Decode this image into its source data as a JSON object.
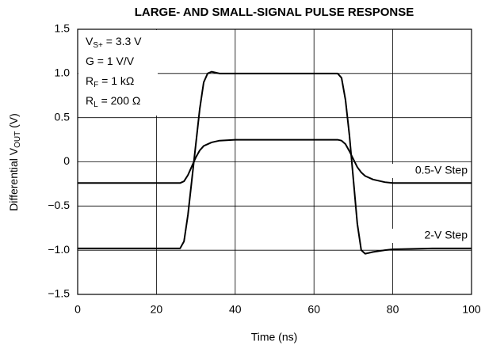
{
  "chart_data": {
    "type": "line",
    "title": "LARGE- AND SMALL-SIGNAL PULSE RESPONSE",
    "xlabel": "Time (ns)",
    "ylabel": {
      "text": "Differential V",
      "sub": "OUT",
      "rest": " (V)"
    },
    "annotations": [
      {
        "text": "V",
        "sub": "S+",
        "rest": " = 3.3 V"
      },
      {
        "text": "G = 1 V/V"
      },
      {
        "text": "R",
        "sub": "F",
        "rest": " = 1 kΩ"
      },
      {
        "text": "R",
        "sub": "L",
        "rest": " = 200 Ω"
      }
    ],
    "x": [
      0,
      26,
      27,
      28,
      29,
      30,
      31,
      32,
      33,
      34,
      35,
      36,
      40,
      50,
      60,
      66,
      67,
      68,
      69,
      70,
      71,
      72,
      73,
      75,
      78,
      80,
      90,
      100
    ],
    "series": [
      {
        "name": "0.5-V Step",
        "color": "#000000",
        "values": [
          -0.24,
          -0.24,
          -0.22,
          -0.15,
          -0.05,
          0.05,
          0.13,
          0.18,
          0.2,
          0.22,
          0.23,
          0.24,
          0.25,
          0.25,
          0.25,
          0.25,
          0.24,
          0.2,
          0.12,
          0.03,
          -0.06,
          -0.12,
          -0.16,
          -0.2,
          -0.23,
          -0.24,
          -0.24,
          -0.24
        ]
      },
      {
        "name": "2-V Step",
        "color": "#000000",
        "values": [
          -0.98,
          -0.98,
          -0.9,
          -0.6,
          -0.2,
          0.2,
          0.6,
          0.9,
          1.0,
          1.02,
          1.01,
          1.0,
          1.0,
          1.0,
          1.0,
          1.0,
          0.95,
          0.7,
          0.3,
          -0.2,
          -0.7,
          -1.0,
          -1.04,
          -1.02,
          -1.0,
          -0.99,
          -0.98,
          -0.98
        ]
      }
    ],
    "xlim": [
      0,
      100
    ],
    "xticks": [
      0,
      20,
      40,
      60,
      80,
      100
    ],
    "ylim": [
      -1.5,
      1.5
    ],
    "yticks": [
      {
        "value": -1.5,
        "label": "−1.5"
      },
      {
        "value": -1,
        "label": "−1.0"
      },
      {
        "value": -0.5,
        "label": "−0.5"
      },
      0,
      0.5,
      {
        "value": 1,
        "label": "1.0"
      },
      1.5
    ],
    "grid": true
  }
}
